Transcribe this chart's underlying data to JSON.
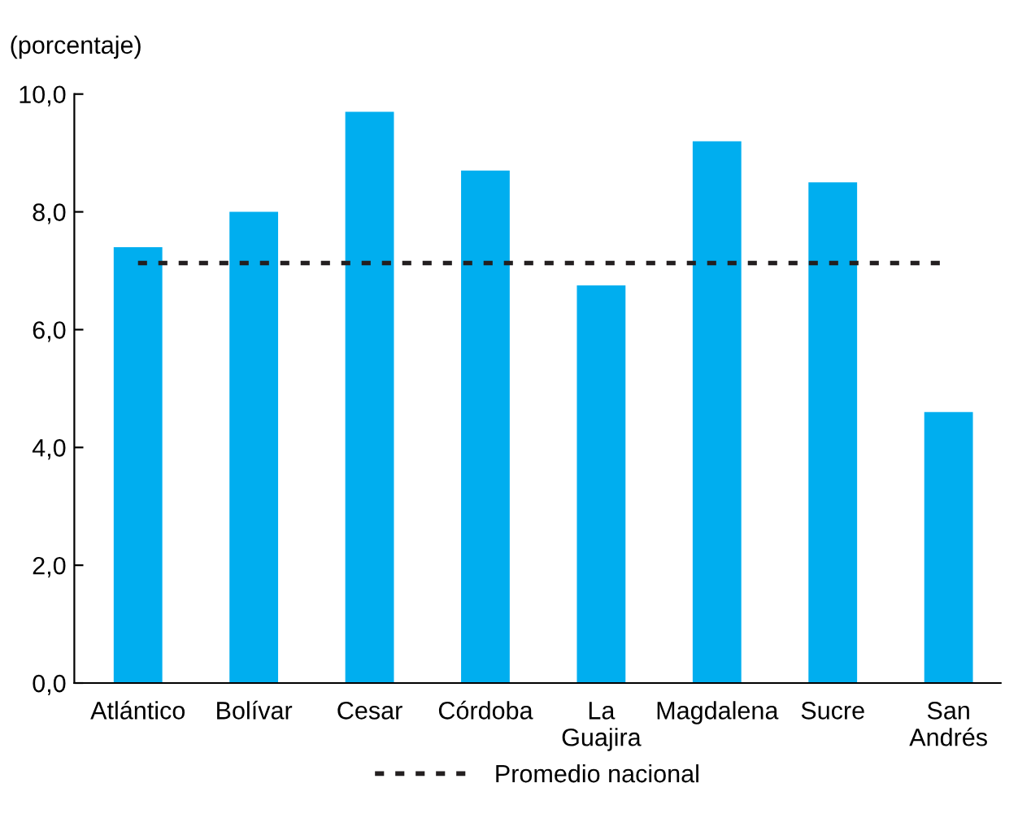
{
  "chart_data": {
    "type": "bar",
    "ylabel": "(porcentaje)",
    "categories": [
      "Atlántico",
      "Bolívar",
      "Cesar",
      "Córdoba",
      "La\nGuajira",
      "Magdalena",
      "Sucre",
      "San\nAndrés"
    ],
    "values": [
      7.4,
      8.0,
      9.7,
      8.7,
      6.75,
      9.2,
      8.5,
      4.6
    ],
    "color": "#00aeef",
    "ylim": [
      0,
      10
    ],
    "yticks": [
      {
        "value": 0,
        "label": "0,0"
      },
      {
        "value": 2,
        "label": "2,0"
      },
      {
        "value": 4,
        "label": "4,0"
      },
      {
        "value": 6,
        "label": "6,0"
      },
      {
        "value": 8,
        "label": "8,0"
      },
      {
        "value": 10,
        "label": "10,0"
      }
    ],
    "ref_lines": [
      {
        "axis": "y",
        "value": 7.13,
        "label": "Promedio nacional",
        "color": "#231f20",
        "line_style": "dotted"
      }
    ],
    "legend": "bottom",
    "grid": false
  }
}
